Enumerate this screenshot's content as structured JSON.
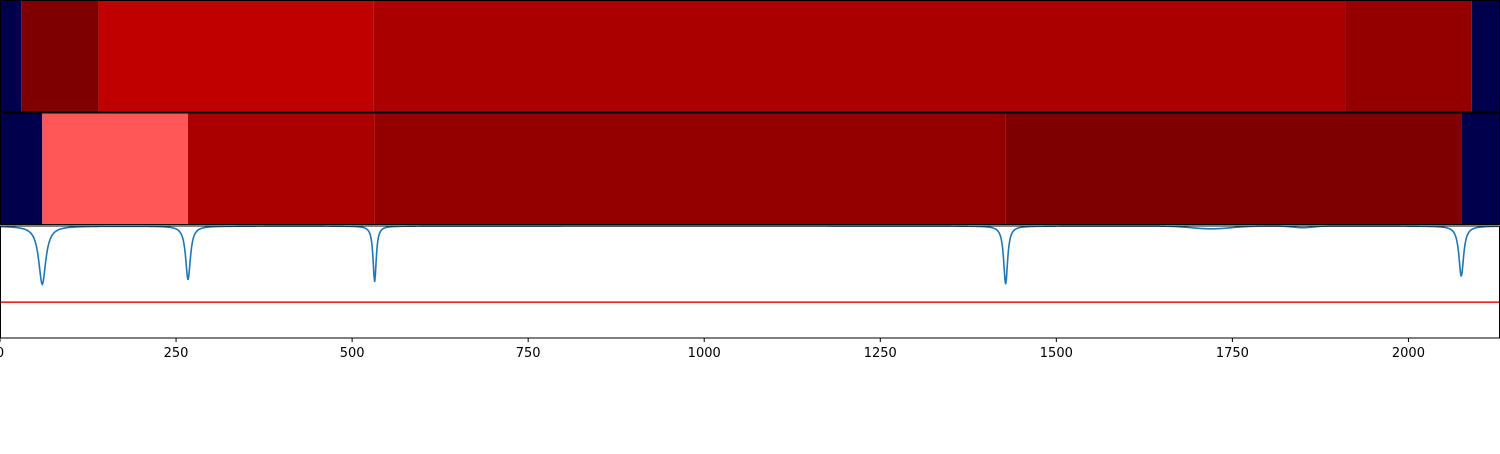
{
  "colors": {
    "background": "#ffffff",
    "axis": "#000000",
    "panel_divider": "#ffffff",
    "curve": "#1f77b4",
    "threshold": "#e8221b"
  },
  "chart_data": {
    "type": "heatmap",
    "xlim": [
      0,
      2130
    ],
    "x_ticks": [
      0,
      250,
      500,
      750,
      1000,
      1250,
      1500,
      1750,
      2000
    ],
    "x_tick_labels": [
      "0",
      "250",
      "500",
      "750",
      "1000",
      "1250",
      "1500",
      "1750",
      "2000"
    ],
    "segment_rows": [
      {
        "segments": [
          {
            "start": 0,
            "end": 30,
            "color": "#00004c"
          },
          {
            "start": 30,
            "end": 140,
            "color": "#7f0000"
          },
          {
            "start": 140,
            "end": 530,
            "color": "#c00000"
          },
          {
            "start": 530,
            "end": 1910,
            "color": "#aa0000"
          },
          {
            "start": 1910,
            "end": 2090,
            "color": "#940000"
          },
          {
            "start": 2090,
            "end": 2130,
            "color": "#00004c"
          }
        ]
      },
      {
        "segments": [
          {
            "start": 0,
            "end": 60,
            "color": "#00004c"
          },
          {
            "start": 60,
            "end": 267,
            "color": "#ff5757"
          },
          {
            "start": 267,
            "end": 532,
            "color": "#aa0000"
          },
          {
            "start": 532,
            "end": 1428,
            "color": "#940000"
          },
          {
            "start": 1428,
            "end": 2075,
            "color": "#7f0000"
          },
          {
            "start": 2075,
            "end": 2130,
            "color": "#00004c"
          }
        ]
      }
    ],
    "line_panel": {
      "ylim": [
        0,
        1
      ],
      "threshold_y": 0.32,
      "baseline_y": 1.0,
      "dips": [
        {
          "x": 60,
          "depth": 0.52,
          "width": 9
        },
        {
          "x": 267,
          "depth": 0.48,
          "width": 6
        },
        {
          "x": 532,
          "depth": 0.5,
          "width": 4
        },
        {
          "x": 1428,
          "depth": 0.52,
          "width": 5
        },
        {
          "x": 2075,
          "depth": 0.45,
          "width": 6
        }
      ],
      "bumps": [
        {
          "x": 1720,
          "depth": 0.025,
          "width": 40
        },
        {
          "x": 1850,
          "depth": 0.015,
          "width": 20
        }
      ]
    }
  }
}
